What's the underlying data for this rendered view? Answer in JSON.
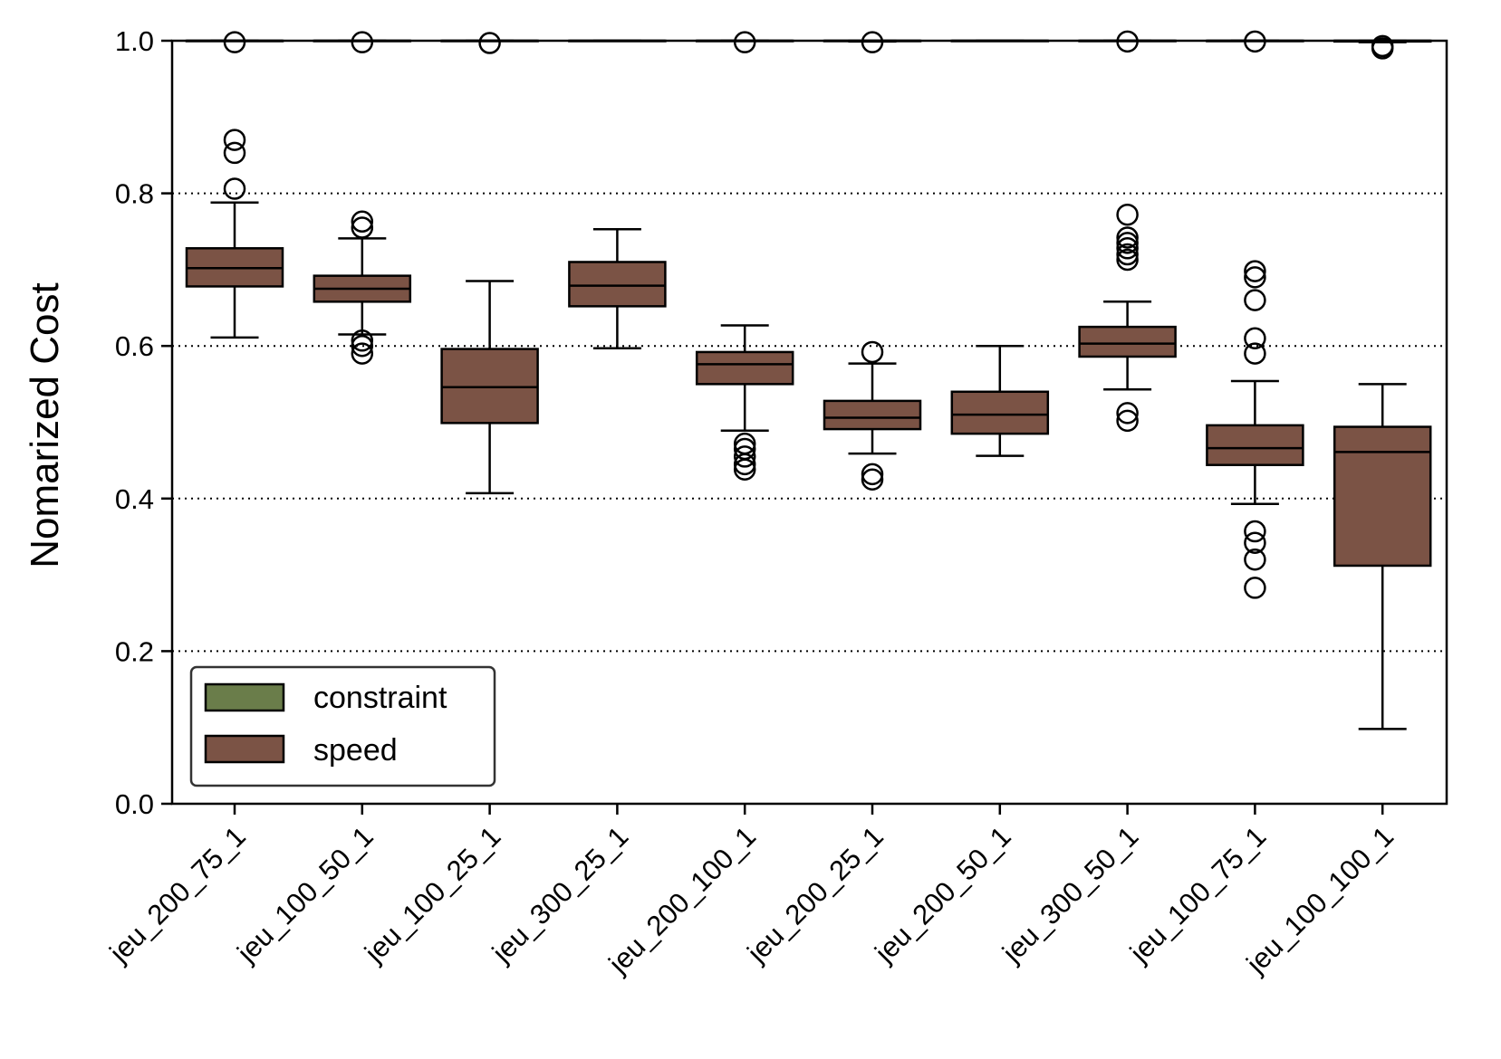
{
  "chart_data": {
    "type": "box",
    "title": "",
    "xlabel": "",
    "ylabel": "Nomarized Cost",
    "ylim": [
      0,
      1.0
    ],
    "yticks": [
      "0.0",
      "0.2",
      "0.4",
      "0.6",
      "0.8",
      "1.0"
    ],
    "ytick_values": [
      0,
      0.2,
      0.4,
      0.6,
      0.8,
      1.0
    ],
    "grid": "dotted horizontal at y ticks",
    "legend": {
      "placement": "lower-left",
      "entries": [
        {
          "label": "constraint",
          "color": "#6a7d4a"
        },
        {
          "label": "speed",
          "color": "#7b5345"
        }
      ]
    },
    "categories": [
      "jeu_200_75_1",
      "jeu_100_50_1",
      "jeu_100_25_1",
      "jeu_300_25_1",
      "jeu_200_100_1",
      "jeu_200_25_1",
      "jeu_200_50_1",
      "jeu_300_50_1",
      "jeu_100_75_1",
      "jeu_100_100_1"
    ],
    "series": [
      {
        "name": "constraint",
        "color": "#6a7d4a",
        "boxes": [
          {
            "whislo": 1.0,
            "q1": 1.0,
            "med": 1.0,
            "q3": 1.0,
            "whishi": 1.0,
            "fliers": [
              0.998
            ]
          },
          {
            "whislo": 1.0,
            "q1": 1.0,
            "med": 1.0,
            "q3": 1.0,
            "whishi": 1.0,
            "fliers": [
              0.998
            ]
          },
          {
            "whislo": 1.0,
            "q1": 1.0,
            "med": 1.0,
            "q3": 1.0,
            "whishi": 1.0,
            "fliers": [
              0.997
            ]
          },
          {
            "whislo": 1.0,
            "q1": 1.0,
            "med": 1.0,
            "q3": 1.0,
            "whishi": 1.0,
            "fliers": []
          },
          {
            "whislo": 1.0,
            "q1": 1.0,
            "med": 1.0,
            "q3": 1.0,
            "whishi": 1.0,
            "fliers": [
              0.998
            ]
          },
          {
            "whislo": 0.999,
            "q1": 1.0,
            "med": 1.0,
            "q3": 1.0,
            "whishi": 1.0,
            "fliers": [
              0.998
            ]
          },
          {
            "whislo": 1.0,
            "q1": 1.0,
            "med": 1.0,
            "q3": 1.0,
            "whishi": 1.0,
            "fliers": []
          },
          {
            "whislo": 1.0,
            "q1": 1.0,
            "med": 1.0,
            "q3": 1.0,
            "whishi": 1.0,
            "fliers": [
              0.999
            ]
          },
          {
            "whislo": 1.0,
            "q1": 1.0,
            "med": 1.0,
            "q3": 1.0,
            "whishi": 1.0,
            "fliers": [
              0.999
            ]
          },
          {
            "whislo": 0.998,
            "q1": 0.999,
            "med": 1.0,
            "q3": 1.0,
            "whishi": 1.0,
            "fliers": [
              0.993,
              0.99
            ]
          }
        ]
      },
      {
        "name": "speed",
        "color": "#7b5345",
        "boxes": [
          {
            "whislo": 0.611,
            "q1": 0.678,
            "med": 0.702,
            "q3": 0.728,
            "whishi": 0.788,
            "fliers": [
              0.806,
              0.853,
              0.87
            ]
          },
          {
            "whislo": 0.615,
            "q1": 0.658,
            "med": 0.675,
            "q3": 0.692,
            "whishi": 0.741,
            "fliers": [
              0.59,
              0.6,
              0.607,
              0.755,
              0.763
            ]
          },
          {
            "whislo": 0.407,
            "q1": 0.499,
            "med": 0.546,
            "q3": 0.596,
            "whishi": 0.685,
            "fliers": []
          },
          {
            "whislo": 0.597,
            "q1": 0.652,
            "med": 0.679,
            "q3": 0.71,
            "whishi": 0.753,
            "fliers": []
          },
          {
            "whislo": 0.489,
            "q1": 0.55,
            "med": 0.576,
            "q3": 0.592,
            "whishi": 0.627,
            "fliers": [
              0.438,
              0.445,
              0.455,
              0.465,
              0.472
            ]
          },
          {
            "whislo": 0.459,
            "q1": 0.491,
            "med": 0.506,
            "q3": 0.528,
            "whishi": 0.577,
            "fliers": [
              0.425,
              0.432,
              0.592
            ]
          },
          {
            "whislo": 0.456,
            "q1": 0.485,
            "med": 0.51,
            "q3": 0.54,
            "whishi": 0.6,
            "fliers": []
          },
          {
            "whislo": 0.543,
            "q1": 0.586,
            "med": 0.603,
            "q3": 0.625,
            "whishi": 0.658,
            "fliers": [
              0.502,
              0.512,
              0.713,
              0.72,
              0.728,
              0.735,
              0.742,
              0.772
            ]
          },
          {
            "whislo": 0.393,
            "q1": 0.444,
            "med": 0.466,
            "q3": 0.496,
            "whishi": 0.554,
            "fliers": [
              0.283,
              0.32,
              0.342,
              0.357,
              0.59,
              0.61,
              0.66,
              0.69,
              0.698
            ]
          },
          {
            "whislo": 0.098,
            "q1": 0.312,
            "med": 0.461,
            "q3": 0.494,
            "whishi": 0.55,
            "fliers": []
          }
        ]
      }
    ]
  }
}
